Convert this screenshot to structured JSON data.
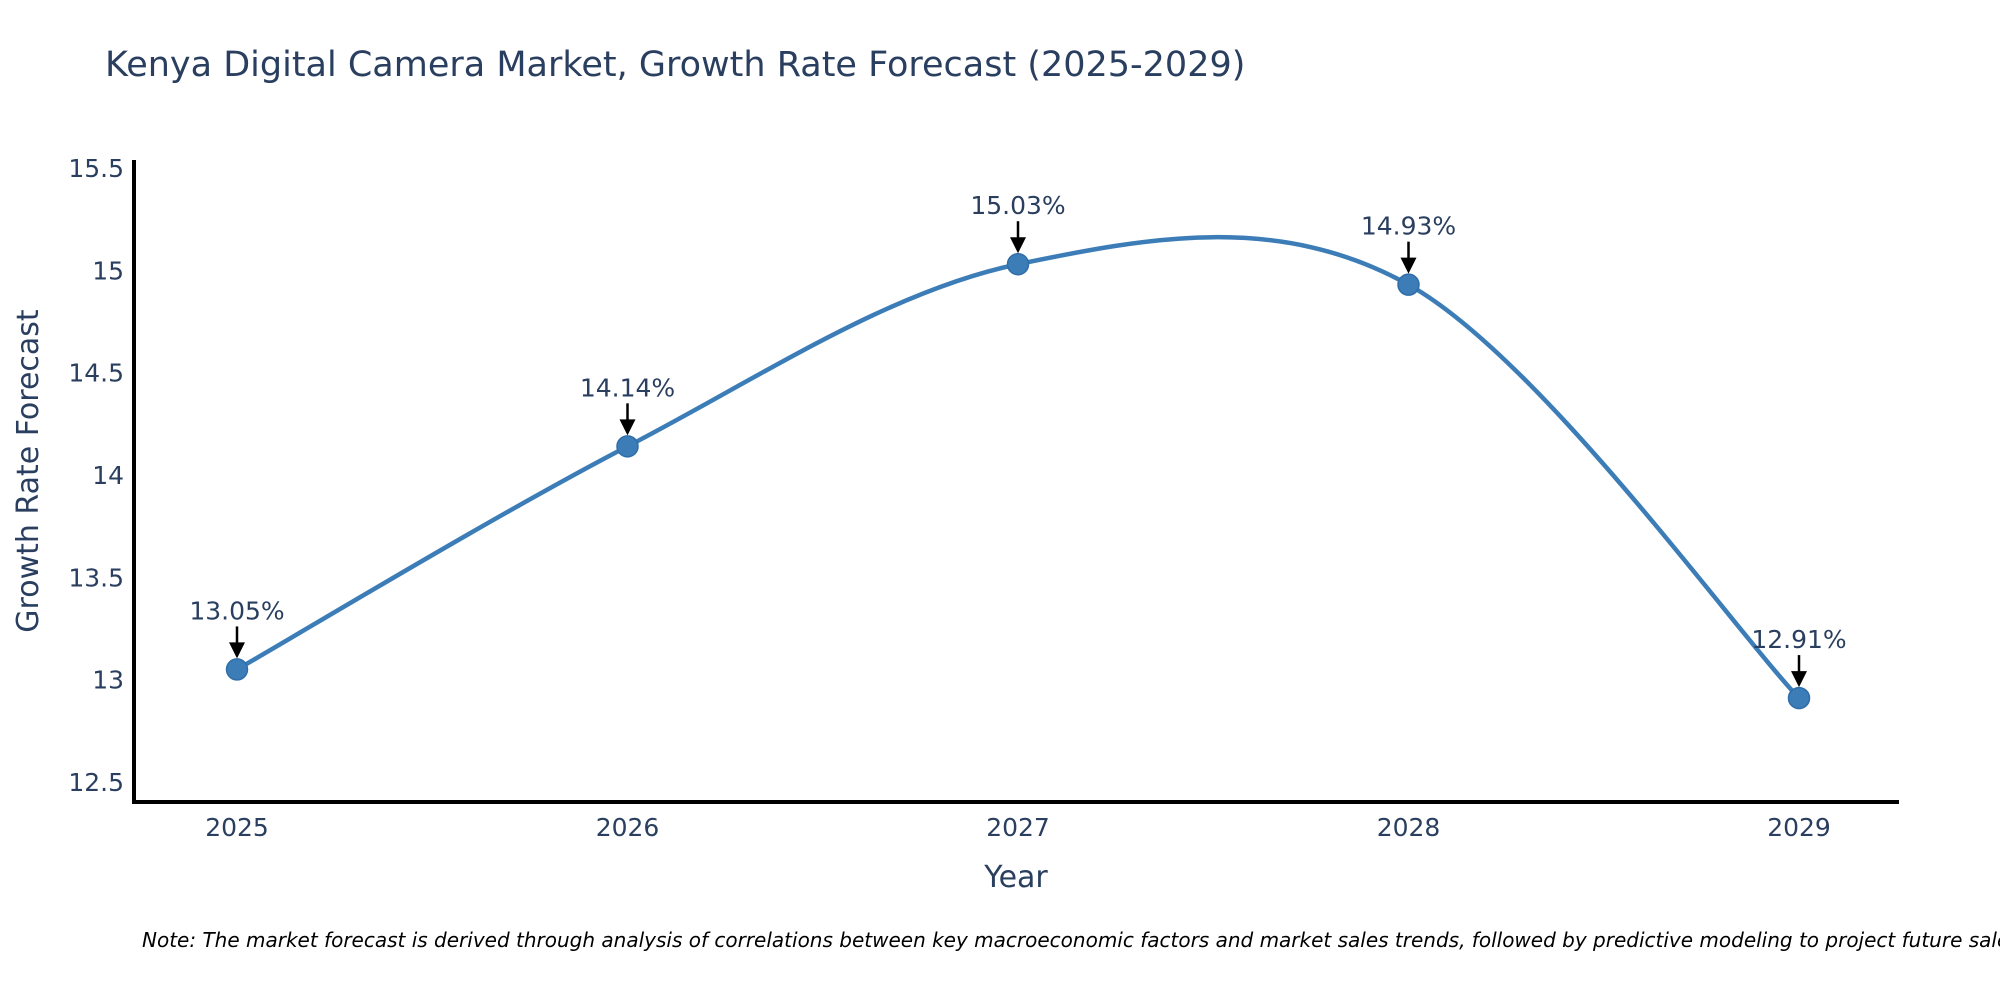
{
  "page": {
    "background": "#ffffff"
  },
  "chart_data": {
    "type": "line",
    "title": "Kenya Digital Camera Market, Growth Rate Forecast (2025-2029)",
    "xlabel": "Year",
    "ylabel": "Growth Rate Forecast",
    "x": [
      2025,
      2026,
      2027,
      2028,
      2029
    ],
    "xtick_labels": [
      "2025",
      "2026",
      "2027",
      "2028",
      "2029"
    ],
    "series": [
      {
        "name": "Growth Rate Forecast",
        "values": [
          13.05,
          14.14,
          15.03,
          14.93,
          12.91
        ],
        "point_labels": [
          "13.05%",
          "14.14%",
          "15.03%",
          "14.93%",
          "12.91%"
        ]
      }
    ],
    "yticks": [
      12.5,
      13,
      13.5,
      14,
      14.5,
      15,
      15.5
    ],
    "ytick_labels": [
      "12.5",
      "13",
      "13.5",
      "14",
      "14.5",
      "15",
      "15.5"
    ],
    "ylim": [
      12.41,
      15.55
    ],
    "line_shape": "spline",
    "grid": false,
    "legend_position": "none",
    "markers": true,
    "annotations_have_arrows": true,
    "colors": {
      "line": "#3c7db8",
      "marker_fill": "#3c7db8",
      "marker_edge": "#2f6da8",
      "axis_line": "#000000",
      "text": "#2a3f5f",
      "annotation_text": "#2a3f5f",
      "annotation_arrow": "#000000"
    }
  },
  "footnote": "Note: The market forecast is derived through analysis of correlations between key macroeconomic factors and market sales trends, followed by predictive modeling to project future sales."
}
